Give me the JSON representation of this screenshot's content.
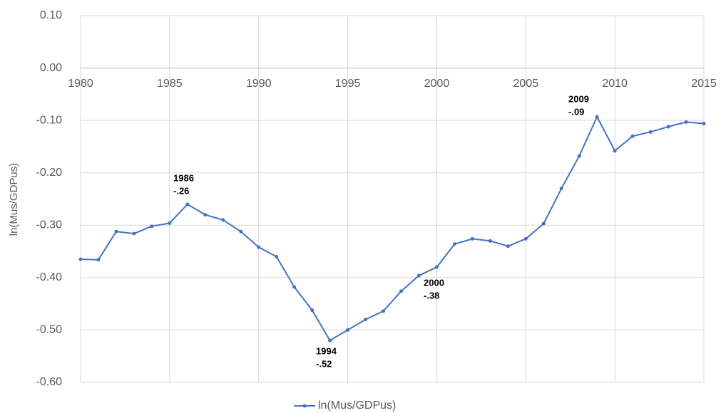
{
  "chart_data": {
    "type": "line",
    "y_label": "ln(Mus/GDPus)",
    "x": [
      1980,
      1981,
      1982,
      1983,
      1984,
      1985,
      1986,
      1987,
      1988,
      1989,
      1990,
      1991,
      1992,
      1993,
      1994,
      1995,
      1996,
      1997,
      1998,
      1999,
      2000,
      2001,
      2002,
      2003,
      2004,
      2005,
      2006,
      2007,
      2008,
      2009,
      2010,
      2011,
      2012,
      2013,
      2014,
      2015
    ],
    "series": [
      {
        "name": "ln(Mus/GDPus)",
        "color": "#4472c4",
        "values": [
          -0.365,
          -0.366,
          -0.312,
          -0.316,
          -0.302,
          -0.296,
          -0.26,
          -0.28,
          -0.29,
          -0.312,
          -0.342,
          -0.36,
          -0.418,
          -0.462,
          -0.52,
          -0.5,
          -0.48,
          -0.464,
          -0.426,
          -0.396,
          -0.38,
          -0.336,
          -0.326,
          -0.33,
          -0.34,
          -0.326,
          -0.297,
          -0.23,
          -0.168,
          -0.093,
          -0.158,
          -0.13,
          -0.122,
          -0.112,
          -0.103,
          -0.106
        ]
      }
    ],
    "xlim": [
      1980,
      2015
    ],
    "xticks": [
      1980,
      1985,
      1990,
      1995,
      2000,
      2005,
      2010,
      2015
    ],
    "ylim": [
      -0.6,
      0.1
    ],
    "yticks": [
      {
        "value": -0.6,
        "label": "-0.60"
      },
      {
        "value": -0.5,
        "label": "-0.50"
      },
      {
        "value": -0.4,
        "label": "-0.40"
      },
      {
        "value": -0.3,
        "label": "-0.30"
      },
      {
        "value": -0.2,
        "label": "-0.20"
      },
      {
        "value": -0.1,
        "label": "-0.10"
      },
      {
        "value": 0,
        "label": "0.00"
      },
      {
        "value": 0.1,
        "label": "0.10"
      }
    ],
    "grid": true,
    "legend": "bottom",
    "annotations": [
      {
        "lines": [
          "1986",
          "-.26"
        ]
      },
      {
        "lines": [
          "1994",
          "-.52"
        ]
      },
      {
        "lines": [
          "2000",
          "-.38"
        ]
      },
      {
        "lines": [
          "2009",
          "-.09"
        ]
      }
    ]
  }
}
